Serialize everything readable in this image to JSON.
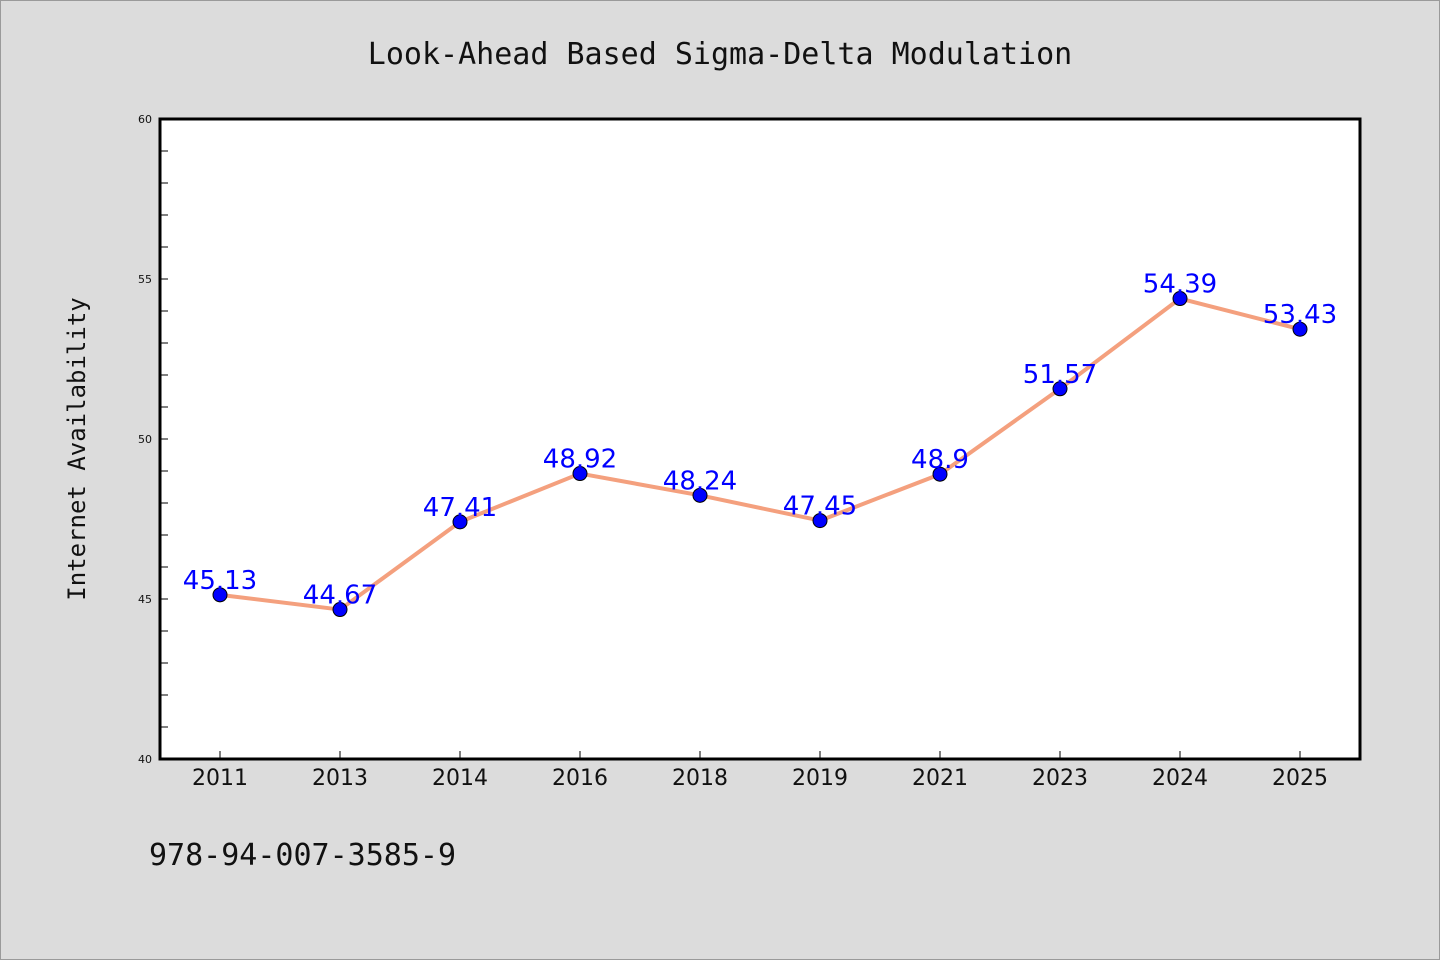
{
  "chart_data": {
    "type": "line",
    "title": "Look-Ahead Based Sigma-Delta Modulation",
    "xlabel": "",
    "ylabel": "Internet Availability",
    "categories": [
      "2011",
      "2013",
      "2014",
      "2016",
      "2018",
      "2019",
      "2021",
      "2023",
      "2024",
      "2025"
    ],
    "series": [
      {
        "values": [
          45.13,
          44.67,
          47.41,
          48.92,
          48.24,
          47.45,
          48.9,
          51.57,
          54.39,
          53.43
        ],
        "data_labels": [
          "45.13",
          "44.67",
          "47.41",
          "48.92",
          "48.24",
          "47.45",
          "48.9",
          "51.57",
          "54.39",
          "53.43"
        ],
        "line_color": "#f4a07e",
        "marker_color": "#0000ff",
        "label_color": "#0000ff"
      }
    ],
    "ylim": [
      40,
      60
    ],
    "yticks": [
      "40",
      "45",
      "50",
      "55",
      "60"
    ],
    "grid": false,
    "legend": "none"
  },
  "footer_text": "978-94-007-3585-9"
}
